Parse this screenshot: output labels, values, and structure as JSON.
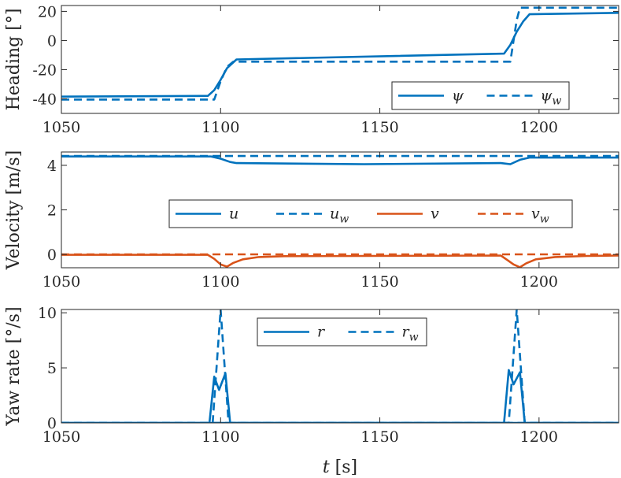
{
  "chart_data": [
    {
      "type": "line",
      "ylabel": "Heading [°]",
      "xlim": [
        1050,
        1225
      ],
      "ylim": [
        -50,
        24
      ],
      "xticks": [
        "1050",
        "1100",
        "1150",
        "1200"
      ],
      "yticks": [
        "-40",
        "-20",
        "0",
        "20"
      ],
      "legend_position": "bottom-right",
      "series": [
        {
          "name": "ψ",
          "sub": "",
          "color": "#0072BD",
          "dash": "solid",
          "x": [
            1050,
            1096,
            1098,
            1100,
            1102,
            1105,
            1189,
            1191,
            1193,
            1195,
            1197,
            1225
          ],
          "y": [
            -38.5,
            -38,
            -34,
            -27,
            -19,
            -13,
            -9,
            -3,
            6,
            13,
            18,
            19
          ]
        },
        {
          "name": "ψ",
          "sub": "w",
          "color": "#0072BD",
          "dash": "dashed",
          "x": [
            1050,
            1098,
            1100,
            1102,
            1104,
            1191,
            1192,
            1193,
            1194,
            1225
          ],
          "y": [
            -40.5,
            -40.5,
            -28,
            -18,
            -14.5,
            -14.5,
            0,
            14,
            22.5,
            22.5
          ]
        }
      ]
    },
    {
      "type": "line",
      "ylabel": "Velocity [m/s]",
      "xlim": [
        1050,
        1225
      ],
      "ylim": [
        -0.6,
        4.6
      ],
      "xticks": [
        "1050",
        "1100",
        "1150",
        "1200"
      ],
      "yticks": [
        "0",
        "2",
        "4"
      ],
      "legend_position": "center",
      "series": [
        {
          "name": "u",
          "sub": "",
          "color": "#0072BD",
          "dash": "solid",
          "x": [
            1050,
            1097,
            1100,
            1103,
            1105,
            1145,
            1188,
            1191,
            1194,
            1197,
            1225
          ],
          "y": [
            4.4,
            4.4,
            4.3,
            4.15,
            4.1,
            4.05,
            4.1,
            4.05,
            4.25,
            4.35,
            4.35
          ]
        },
        {
          "name": "u",
          "sub": "w",
          "color": "#0072BD",
          "dash": "dashed",
          "x": [
            1050,
            1225
          ],
          "y": [
            4.42,
            4.42
          ]
        },
        {
          "name": "v",
          "sub": "",
          "color": "#D95319",
          "dash": "solid",
          "x": [
            1050,
            1096,
            1098,
            1100,
            1102,
            1104,
            1107,
            1112,
            1120,
            1188,
            1190,
            1192,
            1194,
            1196,
            1199,
            1205,
            1215,
            1225
          ],
          "y": [
            -0.02,
            -0.02,
            -0.2,
            -0.45,
            -0.55,
            -0.38,
            -0.22,
            -0.12,
            -0.08,
            -0.05,
            -0.25,
            -0.45,
            -0.58,
            -0.4,
            -0.22,
            -0.12,
            -0.07,
            -0.05
          ]
        },
        {
          "name": "v",
          "sub": "w",
          "color": "#D95319",
          "dash": "dashed",
          "x": [
            1050,
            1225
          ],
          "y": [
            0,
            0
          ]
        }
      ]
    },
    {
      "type": "line",
      "ylabel": "Yaw rate [°/s]",
      "xlabel": "t [s]",
      "xlim": [
        1050,
        1225
      ],
      "ylim": [
        0,
        10.3
      ],
      "xticks": [
        "1050",
        "1100",
        "1150",
        "1200"
      ],
      "yticks": [
        "0",
        "5",
        "10"
      ],
      "legend_position": "top-center",
      "series": [
        {
          "name": "r",
          "sub": "",
          "color": "#0072BD",
          "dash": "solid",
          "x": [
            1050,
            1096.5,
            1098,
            1099.5,
            1101.5,
            1103,
            1225
          ],
          "y": [
            0,
            0,
            4.2,
            3,
            4.5,
            0,
            0
          ]
        },
        {
          "name": "r",
          "sub": "w",
          "color": "#0072BD",
          "dash": "dashed",
          "x": [
            1050,
            1097.5,
            1100,
            1102.5,
            1225
          ],
          "y": [
            0,
            0,
            10.3,
            0,
            0
          ]
        },
        {
          "name": "r",
          "sub": "",
          "color": "#0072BD",
          "dash": "solid",
          "x": [
            1050,
            1189,
            1190.5,
            1192,
            1194,
            1195.5,
            1225
          ],
          "y": [
            0,
            0,
            4.8,
            3.5,
            4.6,
            0,
            0
          ]
        },
        {
          "name": "r",
          "sub": "w",
          "color": "#0072BD",
          "dash": "dashed",
          "x": [
            1050,
            1190.5,
            1193,
            1195.5,
            1225
          ],
          "y": [
            0,
            0,
            10.3,
            0,
            0
          ]
        }
      ]
    }
  ]
}
